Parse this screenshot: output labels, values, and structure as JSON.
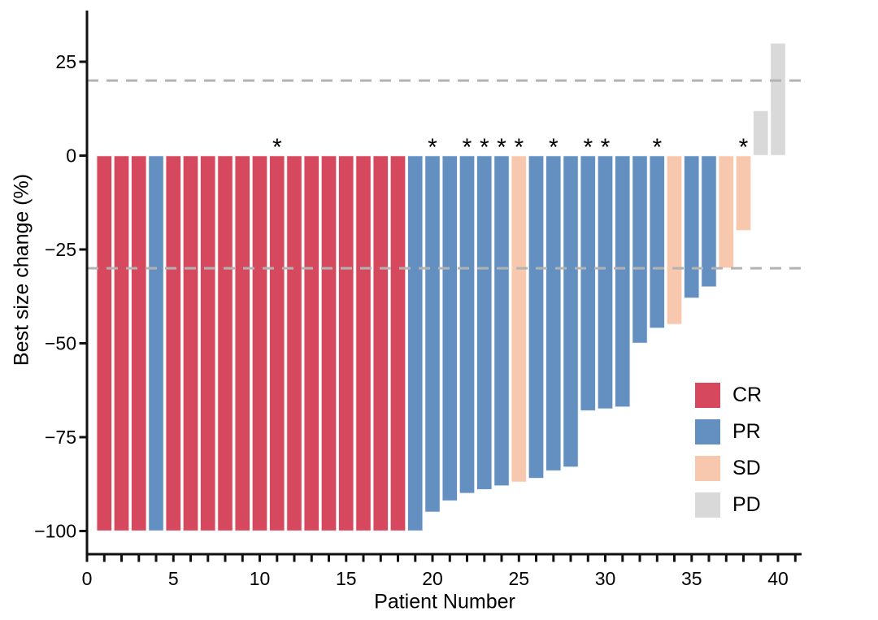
{
  "figure": {
    "xlabel": "Patient Number",
    "ylabel": "Best size change (%)"
  },
  "chart_data": {
    "type": "bar",
    "title": "",
    "xlabel": "Patient Number",
    "ylabel": "Best size change (%)",
    "xlim": [
      0,
      41.5
    ],
    "ylim": [
      -106,
      38
    ],
    "x_tick_minor_values": [
      0,
      1,
      2,
      3,
      4,
      5,
      6,
      7,
      8,
      9,
      10,
      11,
      12,
      13,
      14,
      15,
      16,
      17,
      18,
      19,
      20,
      21,
      22,
      23,
      24,
      25,
      26,
      27,
      28,
      29,
      30,
      31,
      32,
      33,
      34,
      35,
      36,
      37,
      38,
      39,
      40,
      41
    ],
    "x_tick_label_values": [
      0,
      5,
      10,
      15,
      20,
      25,
      30,
      35,
      40
    ],
    "x_tick_labels": [
      "0",
      "5",
      "10",
      "15",
      "20",
      "25",
      "30",
      "35",
      "40"
    ],
    "y_tick_values": [
      25,
      0,
      -25,
      -50,
      -75,
      -100
    ],
    "y_tick_labels": [
      "25",
      "0",
      "−25",
      "−50",
      "−75",
      "−100"
    ],
    "grid": false,
    "reference_lines": [
      {
        "y": 20,
        "style": "dashed",
        "color": "#b3b3b3"
      },
      {
        "y": -30,
        "style": "dashed",
        "color": "#b3b3b3"
      }
    ],
    "annotation_symbol": "*",
    "legend": {
      "position": "right-middle",
      "entries": [
        {
          "label": "CR",
          "color": "#d5485e"
        },
        {
          "label": "PR",
          "color": "#6490c1"
        },
        {
          "label": "SD",
          "color": "#f8c8ae"
        },
        {
          "label": "PD",
          "color": "#d9d9d9"
        }
      ]
    },
    "patients": [
      {
        "patient": 1,
        "value": -100,
        "response": "CR",
        "asterisk": false
      },
      {
        "patient": 2,
        "value": -100,
        "response": "CR",
        "asterisk": false
      },
      {
        "patient": 3,
        "value": -100,
        "response": "CR",
        "asterisk": false
      },
      {
        "patient": 4,
        "value": -100,
        "response": "PR",
        "asterisk": false
      },
      {
        "patient": 5,
        "value": -100,
        "response": "CR",
        "asterisk": false
      },
      {
        "patient": 6,
        "value": -100,
        "response": "CR",
        "asterisk": false
      },
      {
        "patient": 7,
        "value": -100,
        "response": "CR",
        "asterisk": false
      },
      {
        "patient": 8,
        "value": -100,
        "response": "CR",
        "asterisk": false
      },
      {
        "patient": 9,
        "value": -100,
        "response": "CR",
        "asterisk": false
      },
      {
        "patient": 10,
        "value": -100,
        "response": "CR",
        "asterisk": false
      },
      {
        "patient": 11,
        "value": -100,
        "response": "CR",
        "asterisk": true
      },
      {
        "patient": 12,
        "value": -100,
        "response": "CR",
        "asterisk": false
      },
      {
        "patient": 13,
        "value": -100,
        "response": "CR",
        "asterisk": false
      },
      {
        "patient": 14,
        "value": -100,
        "response": "CR",
        "asterisk": false
      },
      {
        "patient": 15,
        "value": -100,
        "response": "CR",
        "asterisk": false
      },
      {
        "patient": 16,
        "value": -100,
        "response": "CR",
        "asterisk": false
      },
      {
        "patient": 17,
        "value": -100,
        "response": "CR",
        "asterisk": false
      },
      {
        "patient": 18,
        "value": -100,
        "response": "CR",
        "asterisk": false
      },
      {
        "patient": 19,
        "value": -100,
        "response": "PR",
        "asterisk": false
      },
      {
        "patient": 20,
        "value": -95,
        "response": "PR",
        "asterisk": true
      },
      {
        "patient": 21,
        "value": -92,
        "response": "PR",
        "asterisk": false
      },
      {
        "patient": 22,
        "value": -90,
        "response": "PR",
        "asterisk": true
      },
      {
        "patient": 23,
        "value": -89,
        "response": "PR",
        "asterisk": true
      },
      {
        "patient": 24,
        "value": -88,
        "response": "PR",
        "asterisk": true
      },
      {
        "patient": 25,
        "value": -87,
        "response": "SD",
        "asterisk": true
      },
      {
        "patient": 26,
        "value": -86,
        "response": "PR",
        "asterisk": false
      },
      {
        "patient": 27,
        "value": -84,
        "response": "PR",
        "asterisk": true
      },
      {
        "patient": 28,
        "value": -83,
        "response": "PR",
        "asterisk": false
      },
      {
        "patient": 29,
        "value": -68,
        "response": "PR",
        "asterisk": true
      },
      {
        "patient": 30,
        "value": -67.5,
        "response": "PR",
        "asterisk": true
      },
      {
        "patient": 31,
        "value": -67,
        "response": "PR",
        "asterisk": false
      },
      {
        "patient": 32,
        "value": -50,
        "response": "PR",
        "asterisk": false
      },
      {
        "patient": 33,
        "value": -46,
        "response": "PR",
        "asterisk": true
      },
      {
        "patient": 34,
        "value": -45,
        "response": "SD",
        "asterisk": false
      },
      {
        "patient": 35,
        "value": -38,
        "response": "PR",
        "asterisk": false
      },
      {
        "patient": 36,
        "value": -35,
        "response": "PR",
        "asterisk": false
      },
      {
        "patient": 37,
        "value": -30,
        "response": "SD",
        "asterisk": false
      },
      {
        "patient": 38,
        "value": -20,
        "response": "SD",
        "asterisk": true
      },
      {
        "patient": 39,
        "value": 12,
        "response": "PD",
        "asterisk": false
      },
      {
        "patient": 40,
        "value": 30,
        "response": "PD",
        "asterisk": false
      }
    ]
  }
}
